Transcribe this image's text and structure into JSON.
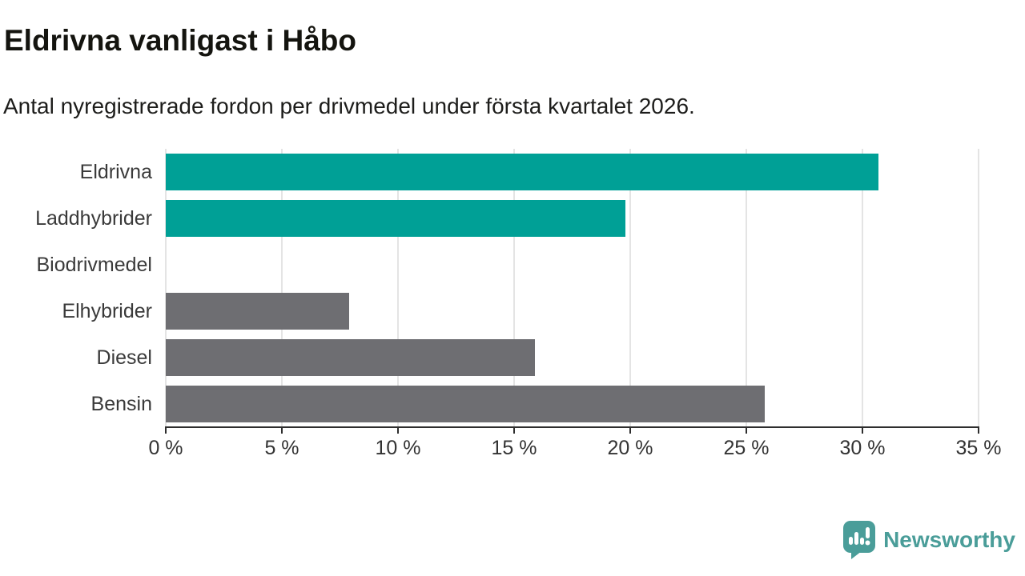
{
  "title": "Eldrivna vanligast i Håbo",
  "subtitle": "Antal nyregistrerade fordon per drivmedel under första kvartalet 2026.",
  "chart_data": {
    "type": "bar",
    "orientation": "horizontal",
    "title": "Eldrivna vanligast i Håbo",
    "subtitle": "Antal nyregistrerade fordon per drivmedel under första kvartalet 2026.",
    "categories": [
      "Eldrivna",
      "Laddhybrider",
      "Biodrivmedel",
      "Elhybrider",
      "Diesel",
      "Bensin"
    ],
    "values": [
      30.7,
      19.8,
      0,
      7.9,
      15.9,
      25.8
    ],
    "unit": "%",
    "xlim": [
      0,
      35
    ],
    "x_ticks": [
      0,
      5,
      10,
      15,
      20,
      25,
      30,
      35
    ],
    "x_tick_labels": [
      "0 %",
      "5 %",
      "10 %",
      "15 %",
      "20 %",
      "25 %",
      "30 %",
      "35 %"
    ],
    "grid": "vertical-light",
    "legend": "none",
    "colors": {
      "highlight": "#00a096",
      "default": "#6e6e72"
    },
    "bar_palette": [
      "highlight",
      "highlight",
      "default",
      "default",
      "default",
      "default"
    ]
  },
  "footer": {
    "brand": "Newsworthy",
    "brand_color": "#4a9d99",
    "logo_icon": "newsworthy-speech-bubble-chart-icon"
  }
}
